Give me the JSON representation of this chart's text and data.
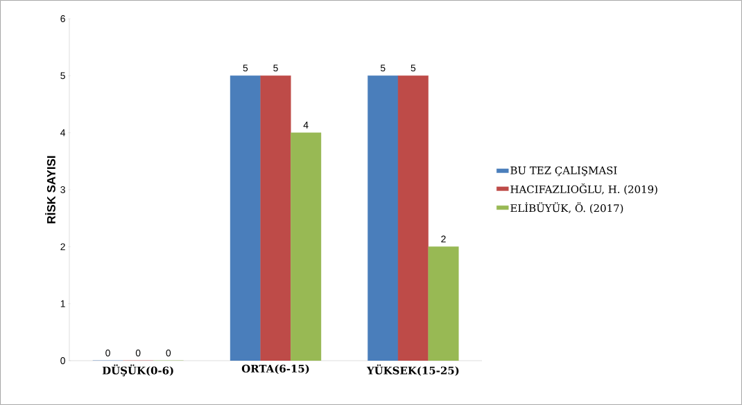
{
  "chart_data": {
    "type": "bar",
    "ylabel": "RİSK SAYISI",
    "categories": [
      "DÜŞÜK(0-6)",
      "ORTA(6-15)",
      "YÜKSEK(15-25)"
    ],
    "series": [
      {
        "name": "BU TEZ ÇALIŞMASI",
        "color": "#4a7ebb",
        "values": [
          0,
          5,
          5
        ]
      },
      {
        "name": "HACIFAZLIOĞLU, H. (2019)",
        "color": "#be4b48",
        "values": [
          0,
          5,
          5
        ]
      },
      {
        "name": "ELİBÜYÜK, Ö. (2017)",
        "color": "#98b954",
        "values": [
          0,
          4,
          2
        ]
      }
    ],
    "ylim": [
      0,
      6
    ],
    "yticks": [
      0,
      1,
      2,
      3,
      4,
      5,
      6
    ],
    "data_labels": true,
    "legend": "right"
  }
}
